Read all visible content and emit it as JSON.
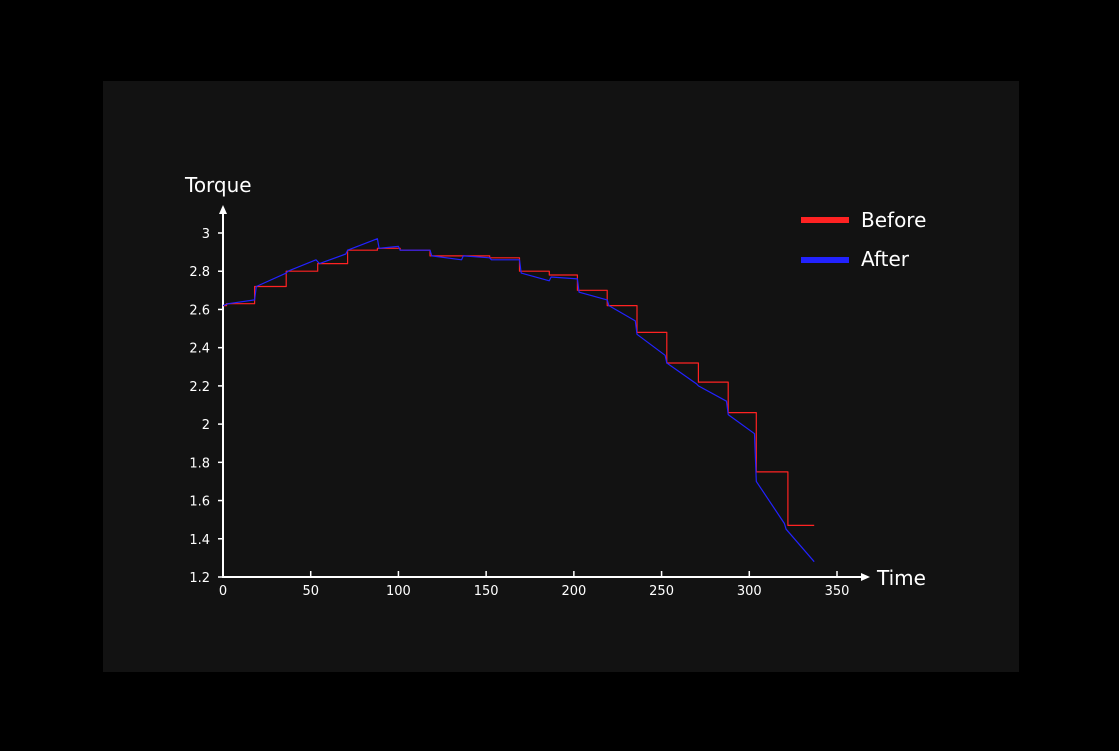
{
  "chart_data": {
    "type": "line",
    "title": "",
    "xlabel": "Time",
    "ylabel": "Torque",
    "xlim": [
      0,
      350
    ],
    "ylim": [
      1.2,
      3
    ],
    "x_ticks": [
      0,
      50,
      100,
      150,
      200,
      250,
      300,
      350
    ],
    "y_ticks": [
      1.2,
      1.4,
      1.6,
      1.8,
      2,
      2.2,
      2.4,
      2.6,
      2.8,
      3
    ],
    "y_tick_labels": [
      "1.2",
      "1.4",
      "1.6",
      "1.8",
      "2",
      "2.2",
      "2.4",
      "2.6",
      "2.8",
      "3"
    ],
    "grid": false,
    "legend_position": "top-right",
    "series": [
      {
        "name": "Before",
        "color": "#ff2222",
        "step": "post",
        "x": [
          0,
          2,
          18,
          36,
          54,
          71,
          88,
          101,
          118,
          136,
          152,
          169,
          186,
          202,
          219,
          236,
          253,
          271,
          288,
          304,
          322,
          337
        ],
        "y": [
          2.62,
          2.63,
          2.72,
          2.8,
          2.84,
          2.91,
          2.92,
          2.91,
          2.88,
          2.88,
          2.87,
          2.8,
          2.78,
          2.7,
          2.62,
          2.48,
          2.32,
          2.22,
          2.06,
          1.75,
          1.47,
          1.47
        ]
      },
      {
        "name": "After",
        "color": "#2222ff",
        "x": [
          0,
          3,
          18,
          19,
          36,
          37,
          53,
          55,
          70,
          71,
          88,
          89,
          100,
          101,
          118,
          119,
          136,
          137,
          152,
          153,
          169,
          170,
          186,
          187,
          202,
          203,
          219,
          220,
          235,
          236,
          252,
          253,
          270,
          271,
          287,
          288,
          303,
          304,
          320,
          321,
          337
        ],
        "y": [
          2.62,
          2.63,
          2.65,
          2.72,
          2.79,
          2.8,
          2.86,
          2.84,
          2.89,
          2.91,
          2.97,
          2.92,
          2.93,
          2.91,
          2.91,
          2.88,
          2.86,
          2.88,
          2.87,
          2.86,
          2.86,
          2.79,
          2.75,
          2.77,
          2.76,
          2.69,
          2.65,
          2.62,
          2.54,
          2.47,
          2.36,
          2.32,
          2.21,
          2.2,
          2.12,
          2.05,
          1.95,
          1.7,
          1.48,
          1.45,
          1.28
        ]
      }
    ]
  }
}
